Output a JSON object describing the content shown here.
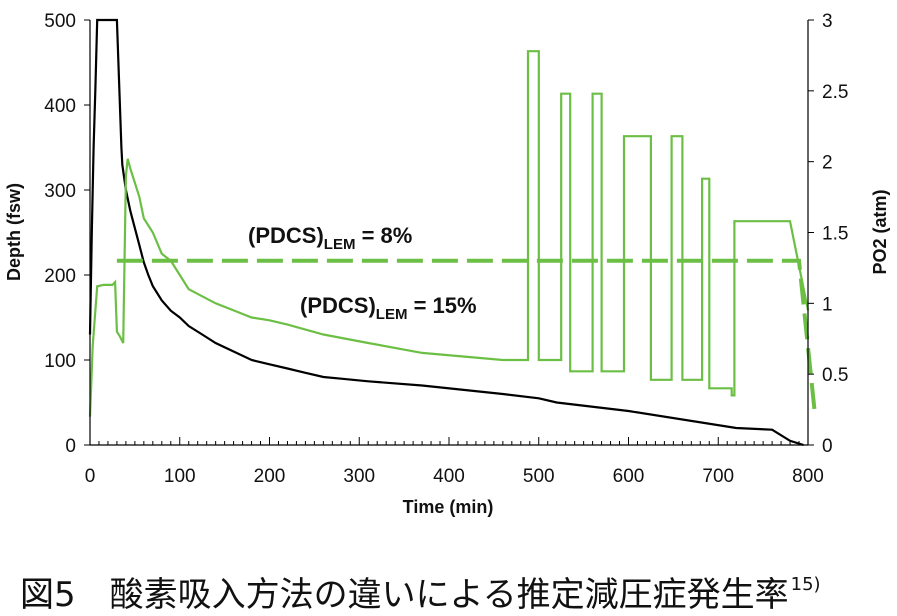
{
  "caption": {
    "text": "図5　酸素吸入方法の違いによる推定減圧症発生率",
    "superscript": "15)"
  },
  "chart_data": {
    "type": "line",
    "xlabel": "Time (min)",
    "ylabel_left": "Depth (fsw)",
    "ylabel_right": "PO2 (atm)",
    "xlim": [
      0,
      800
    ],
    "ylim_left": [
      0,
      500
    ],
    "ylim_right": [
      0,
      3
    ],
    "xticks": [
      "0",
      "100",
      "200",
      "300",
      "400",
      "500",
      "600",
      "700",
      "800"
    ],
    "yticks_left": [
      "0",
      "100",
      "200",
      "300",
      "400",
      "500"
    ],
    "yticks_right": [
      "0",
      "0.5",
      "1",
      "1.5",
      "2",
      "2.5",
      "3"
    ],
    "grid": false,
    "colors": {
      "depth": "#000000",
      "po2": "#6cbf45"
    },
    "annotations": [
      {
        "text": "(PDCS)",
        "subscript": "LEM",
        "suffix": " = 8%"
      },
      {
        "text": "(PDCS)",
        "subscript": "LEM",
        "suffix": " = 15%"
      }
    ],
    "series": [
      {
        "axis": "left",
        "style": "solid",
        "color": "#000000",
        "x": [
          0,
          2,
          4,
          6,
          8,
          30,
          31,
          32,
          33,
          34,
          35,
          36,
          38,
          40,
          42,
          45,
          50,
          55,
          60,
          65,
          70,
          80,
          90,
          100,
          110,
          125,
          140,
          160,
          180,
          200,
          220,
          240,
          260,
          280,
          310,
          370,
          460,
          500,
          520,
          600,
          720,
          760,
          780,
          795
        ],
        "y": [
          130,
          250,
          350,
          420,
          500,
          500,
          470,
          440,
          410,
          380,
          350,
          330,
          315,
          300,
          290,
          275,
          255,
          235,
          215,
          200,
          187,
          170,
          158,
          150,
          140,
          130,
          120,
          110,
          100,
          95,
          90,
          85,
          80,
          78,
          75,
          70,
          60,
          55,
          50,
          40,
          20,
          18,
          5,
          0
        ]
      },
      {
        "axis": "right",
        "style": "solid",
        "color": "#6cbf45",
        "x": [
          0,
          3,
          8,
          15,
          25,
          28,
          30,
          33,
          37,
          40,
          42,
          45,
          50,
          55,
          60,
          70,
          80,
          90,
          100,
          110,
          125,
          140,
          160,
          180,
          200,
          220,
          260,
          310,
          370,
          460,
          488,
          488,
          500,
          500,
          525,
          525,
          535,
          535,
          560,
          560,
          570,
          570,
          595,
          595,
          625,
          625,
          648,
          648,
          660,
          660,
          682,
          682,
          690,
          690,
          715,
          715,
          718,
          718,
          780,
          800
        ],
        "y": [
          0.2,
          0.7,
          1.12,
          1.13,
          1.13,
          1.15,
          0.8,
          0.77,
          0.72,
          1.9,
          2.02,
          1.95,
          1.85,
          1.75,
          1.6,
          1.5,
          1.35,
          1.3,
          1.2,
          1.1,
          1.05,
          1.0,
          0.95,
          0.9,
          0.88,
          0.85,
          0.78,
          0.72,
          0.65,
          0.6,
          0.6,
          2.78,
          2.78,
          0.6,
          0.6,
          2.48,
          2.48,
          0.52,
          0.52,
          2.48,
          2.48,
          0.52,
          0.52,
          2.18,
          2.18,
          0.46,
          0.46,
          2.18,
          2.18,
          0.46,
          0.46,
          1.88,
          1.88,
          0.4,
          0.4,
          0.35,
          0.35,
          1.58,
          1.58,
          0.95
        ]
      },
      {
        "axis": "right",
        "style": "dashed",
        "color": "#6cbf45",
        "x": [
          30,
          790,
          808
        ],
        "y": [
          1.3,
          1.3,
          0.2
        ]
      }
    ]
  }
}
